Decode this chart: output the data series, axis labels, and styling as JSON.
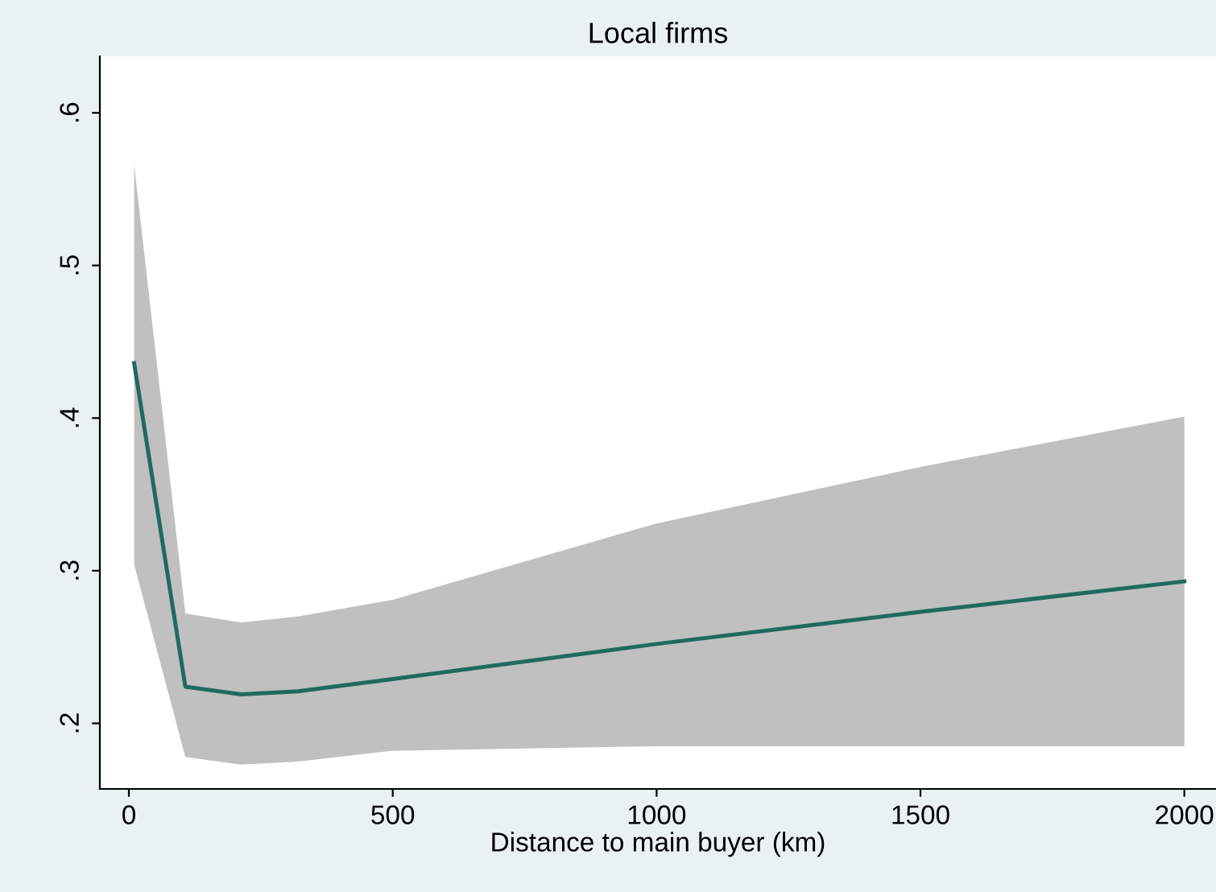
{
  "chart_data": {
    "type": "line",
    "title": "Local firms",
    "xlabel": "Distance to main buyer (km)",
    "series": [
      {
        "color": "#1f6b5e",
        "x": [
          10,
          107,
          213,
          320,
          500,
          1000,
          1500,
          2000
        ],
        "values": [
          0.436,
          0.224,
          0.219,
          0.221,
          0.229,
          0.252,
          0.273,
          0.293
        ],
        "lower": [
          0.304,
          0.178,
          0.173,
          0.175,
          0.182,
          0.185,
          0.185,
          0.185
        ],
        "upper": [
          0.566,
          0.272,
          0.266,
          0.27,
          0.281,
          0.331,
          0.368,
          0.401
        ]
      }
    ],
    "xlim": [
      -55,
      2060
    ],
    "xticks": [
      0,
      500,
      1000,
      1500,
      2000
    ],
    "ylim": [
      0.157,
      0.637
    ],
    "yticks": [
      {
        "value": 0.2,
        "label": ".2"
      },
      {
        "value": 0.3,
        "label": ".3"
      },
      {
        "value": 0.4,
        "label": ".4"
      },
      {
        "value": 0.5,
        "label": ".5"
      },
      {
        "value": 0.6,
        "label": ".6"
      }
    ],
    "grid": false,
    "legend": false,
    "line_style": "solid",
    "marker": "none"
  }
}
